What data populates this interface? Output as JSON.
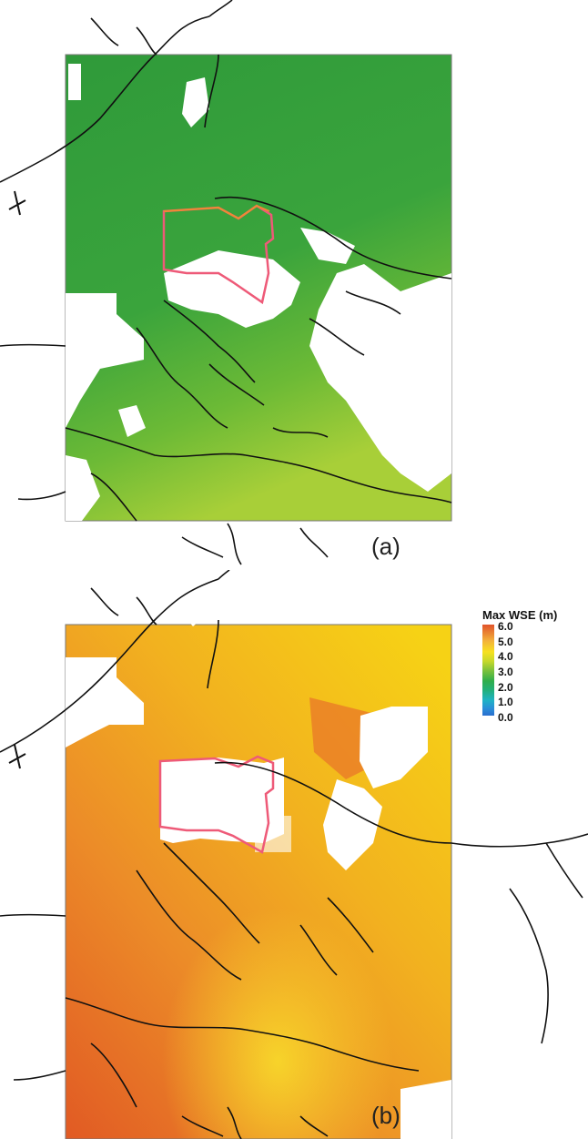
{
  "panels": [
    {
      "id": "a",
      "label": "(a)",
      "palette": "green"
    },
    {
      "id": "b",
      "label": "(b)",
      "palette": "orange"
    }
  ],
  "legend": {
    "title": "Max WSE (m)",
    "ticks": [
      "6.0",
      "5.0",
      "4.0",
      "3.0",
      "2.0",
      "1.0",
      "0.0"
    ],
    "colors": [
      "#e0522a",
      "#f3b23a",
      "#f7e11f",
      "#7fc33a",
      "#2fae4b",
      "#1fb3c4",
      "#2a6fcf"
    ]
  },
  "colors": {
    "boundary_outline": "#ee5a78",
    "river_lines": "#111111",
    "dry_area": "#ffffff"
  }
}
